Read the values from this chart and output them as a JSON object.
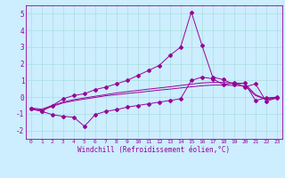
{
  "xlabel": "Windchill (Refroidissement éolien,°C)",
  "color": "#990099",
  "bg_color": "#cceeff",
  "grid_color": "#aadddd",
  "ylim": [
    -2.5,
    5.5
  ],
  "xlim": [
    -0.5,
    23.5
  ],
  "yticks": [
    -2,
    -1,
    0,
    1,
    2,
    3,
    4,
    5
  ],
  "xticks": [
    0,
    1,
    2,
    3,
    4,
    5,
    6,
    7,
    8,
    9,
    10,
    11,
    12,
    13,
    14,
    15,
    16,
    17,
    18,
    19,
    20,
    21,
    22,
    23
  ],
  "y_upper": [
    -0.7,
    -0.85,
    -0.5,
    -0.1,
    0.1,
    0.2,
    0.45,
    0.6,
    0.8,
    1.0,
    1.3,
    1.6,
    1.9,
    2.5,
    3.0,
    5.1,
    3.1,
    1.2,
    1.05,
    0.75,
    0.85,
    -0.2,
    -0.05,
    0.0
  ],
  "y_zigzag": [
    -0.7,
    -0.85,
    -1.05,
    -1.15,
    -1.2,
    -1.75,
    -1.05,
    -0.85,
    -0.75,
    -0.6,
    -0.5,
    -0.4,
    -0.3,
    -0.2,
    -0.1,
    1.0,
    1.2,
    1.1,
    0.75,
    0.85,
    0.6,
    0.8,
    -0.25,
    -0.05
  ],
  "y_mid1": [
    -0.65,
    -0.72,
    -0.5,
    -0.3,
    -0.15,
    -0.05,
    0.05,
    0.15,
    0.25,
    0.33,
    0.4,
    0.48,
    0.55,
    0.62,
    0.7,
    0.78,
    0.85,
    0.88,
    0.88,
    0.85,
    0.82,
    0.15,
    -0.12,
    -0.02
  ],
  "y_lower": [
    -0.7,
    -0.78,
    -0.55,
    -0.35,
    -0.22,
    -0.12,
    -0.02,
    0.08,
    0.15,
    0.22,
    0.28,
    0.35,
    0.42,
    0.48,
    0.55,
    0.62,
    0.68,
    0.72,
    0.72,
    0.7,
    0.68,
    0.1,
    -0.15,
    -0.05
  ],
  "xlabel_fontsize": 5.5,
  "tick_fontsize_x": 4.5,
  "tick_fontsize_y": 5.5,
  "linewidth": 0.7,
  "markersize": 2.0
}
